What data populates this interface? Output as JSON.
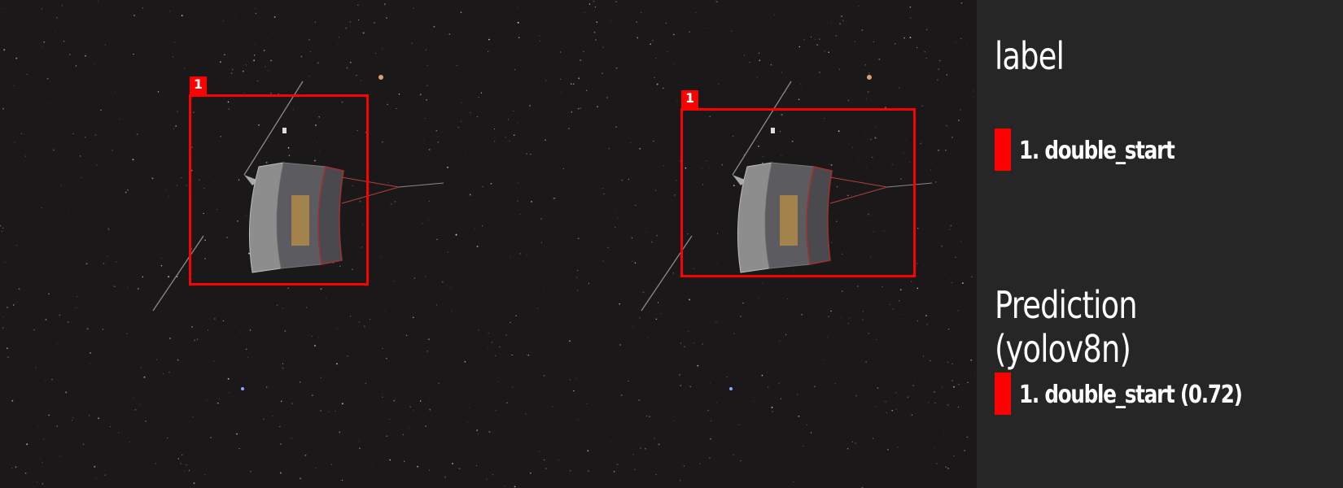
{
  "colors": {
    "box": "#ff0000",
    "legend_bg": "#262626",
    "scene_bg": "#1a1818",
    "text": "#ffffff"
  },
  "scenes": [
    {
      "name": "label-scene",
      "box_tag": "1"
    },
    {
      "name": "prediction-scene",
      "box_tag": "1"
    }
  ],
  "legend": {
    "label_heading": "label",
    "label_items": [
      {
        "text": "1. double_start"
      }
    ],
    "prediction_heading": "Prediction (yolov8n)",
    "prediction_items": [
      {
        "text": "1. double_start (0.72)"
      }
    ]
  }
}
